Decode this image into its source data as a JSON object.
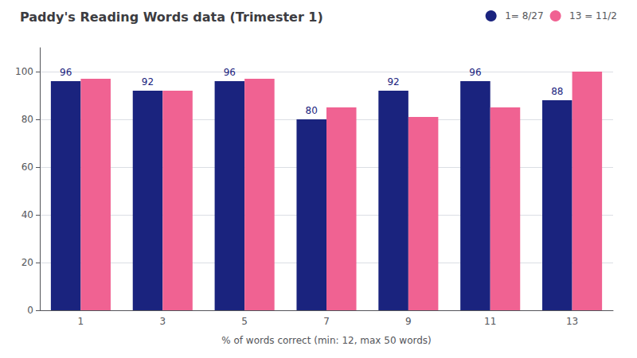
{
  "chart_data": {
    "type": "bar",
    "title": "Paddy's Reading Words data (Trimester 1)",
    "xlabel": "% of words correct (min: 12, max 50 words)",
    "categories": [
      1,
      3,
      5,
      7,
      9,
      11,
      13
    ],
    "series": [
      {
        "name": "1= 8/27",
        "color": "#1a237e",
        "values": [
          96,
          92,
          96,
          80,
          92,
          96,
          88
        ],
        "data_labels": true
      },
      {
        "name": "13 = 11/2",
        "color": "#f06292",
        "values": [
          97,
          92,
          97,
          85,
          81,
          85,
          100
        ]
      }
    ],
    "ylim": [
      0,
      110
    ],
    "yticks": [
      0,
      20,
      40,
      60,
      80,
      100
    ],
    "grid": true,
    "legend": "upper right"
  }
}
